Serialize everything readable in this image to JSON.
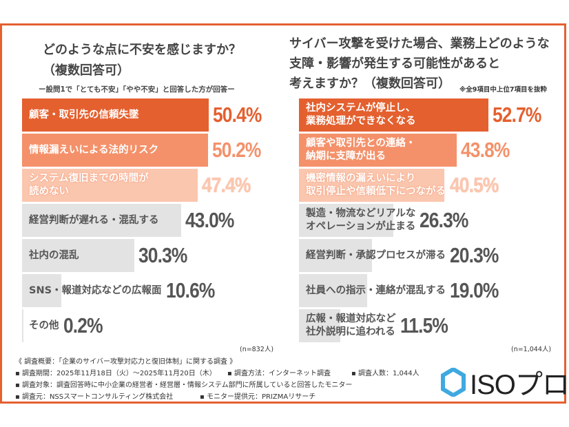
{
  "left": {
    "title_line1": "どのような点に不安を感じますか？",
    "title_line2": "（複数回答可）",
    "subtitle": "ー設問1で「とても不安」「やや不安」と回答した方が回答ー",
    "n_label": "(n=832人)"
  },
  "right": {
    "title_line1": "サイバー攻撃を受けた場合、業務上どのような",
    "title_line2": "支障・影響が発生する可能性があると",
    "title_line3": "考えますか？（複数回答可）",
    "note": "※全9項目中上位7項目を抜粋",
    "n_label": "(n=1,044人)"
  },
  "colors": {
    "top1": "#e4602f",
    "top2": "#f4916a",
    "top3": "#fbc6ae",
    "other": "#e3e3e3",
    "pct_other": "#555555"
  },
  "chart_data": [
    {
      "type": "bar",
      "orientation": "horizontal",
      "title": "どのような点に不安を感じますか？（複数回答可）",
      "categories": [
        "顧客・取引先の信頼失墜",
        "情報漏えいによる法的リスク",
        "システム復旧までの時間が\n読めない",
        "経営判断が遅れる・混乱する",
        "社内の混乱",
        "SNS・報道対応などの広報面",
        "その他"
      ],
      "values": [
        50.4,
        50.2,
        47.4,
        43.0,
        30.3,
        10.6,
        0.2
      ],
      "labels": [
        "50.4%",
        "50.2%",
        "47.4%",
        "43.0%",
        "30.3%",
        "10.6%",
        "0.2%"
      ],
      "unit": "%"
    },
    {
      "type": "bar",
      "orientation": "horizontal",
      "title": "サイバー攻撃を受けた場合、業務上どのような支障・影響が発生する可能性があると考えますか？（複数回答可）",
      "categories": [
        "社内システムが停止し、\n業務処理ができなくなる",
        "顧客や取引先との連絡・\n納期に支障が出る",
        "機密情報の漏えいにより\n取引停止や信頼低下につながる",
        "製造・物流などリアルな\nオペレーションが止まる",
        "経営判断・承認プロセスが滞る",
        "社員への指示・連絡が混乱する",
        "広報・報道対応など\n社外説明に追われる"
      ],
      "values": [
        52.7,
        43.8,
        40.5,
        26.3,
        20.3,
        19.0,
        11.5
      ],
      "labels": [
        "52.7%",
        "43.8%",
        "40.5%",
        "26.3%",
        "20.3%",
        "19.0%",
        "11.5%"
      ],
      "unit": "%"
    }
  ],
  "footer": {
    "overview": "《 調査概要：「企業のサイバー攻撃対応力と復旧体制」に関する調査 》",
    "period": "▪ 調査期間：2025年11月18日（火）～2025年11月20日（木）",
    "method": "▪ 調査方法：インターネット調査",
    "count": "▪ 調査人数：1,044人",
    "target": "▪ 調査対象：調査回答時に中小企業の経営者・経営層・情報システム部門に所属していると回答したモニター",
    "source": "▪ 調査元：NSSスマートコンサルティング株式会社",
    "provider": "▪ モニター提供元：PRIZMAリサーチ"
  },
  "logo": {
    "text": "ISOプロ"
  }
}
